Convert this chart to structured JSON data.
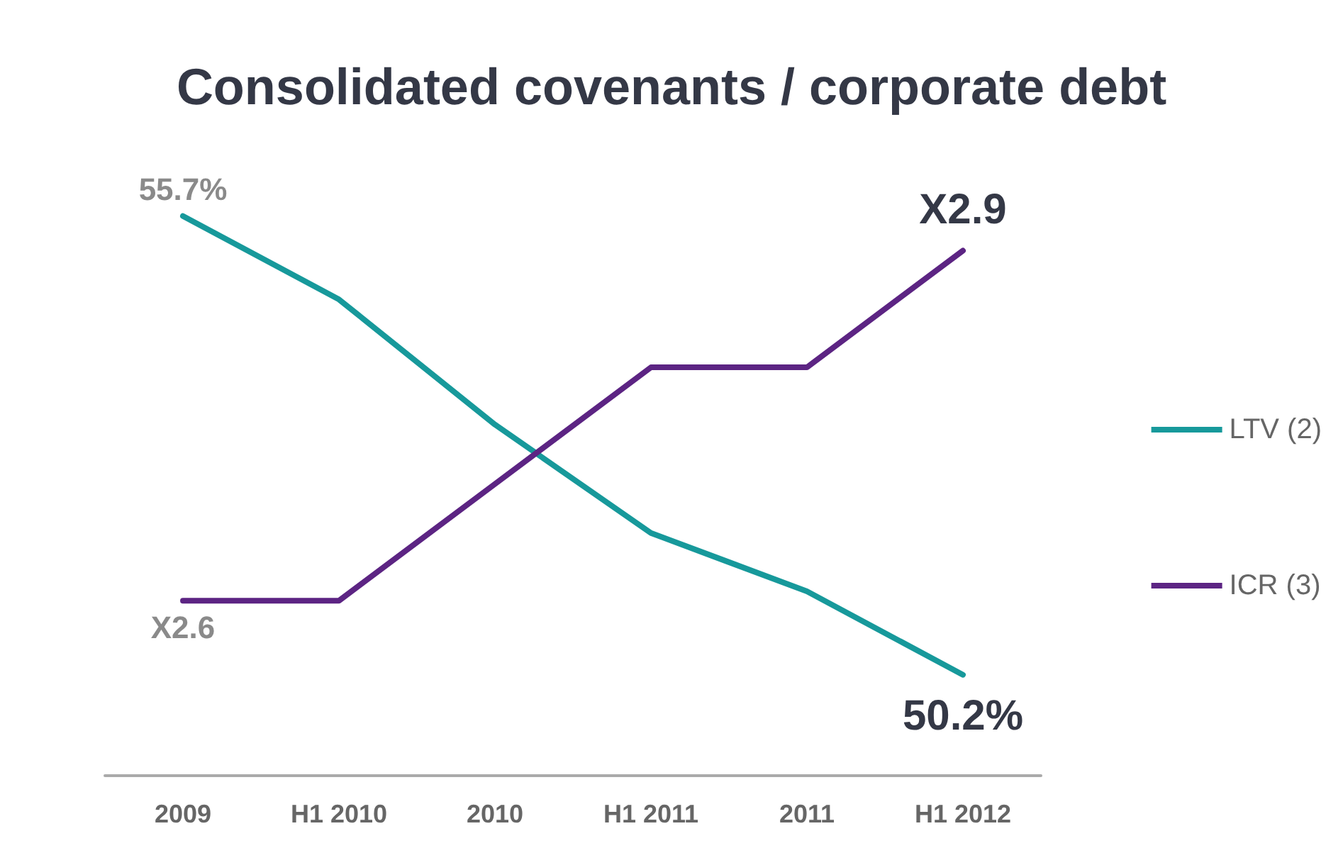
{
  "chart_data": {
    "type": "line",
    "title": "Consolidated covenants / corporate debt",
    "categories": [
      "2009",
      "H1 2010",
      "2010",
      "H1 2011",
      "2011",
      "H1 2012"
    ],
    "series": [
      {
        "name": "LTV (2)",
        "color": "#17999b",
        "values": [
          55.7,
          54.7,
          53.2,
          51.9,
          51.2,
          50.2
        ],
        "value_labels": [
          "55.7%",
          null,
          null,
          null,
          null,
          "50.2%"
        ]
      },
      {
        "name": "ICR (3)",
        "color": "#5c2483",
        "axis": "y2",
        "values": [
          2.6,
          2.6,
          2.7,
          2.8,
          2.8,
          2.9
        ],
        "value_labels": [
          "X2.6",
          null,
          null,
          null,
          null,
          "X2.9"
        ]
      }
    ],
    "tick_labels": "x",
    "grid": false,
    "legend": "right",
    "marker": "none",
    "line_style": "solid"
  }
}
